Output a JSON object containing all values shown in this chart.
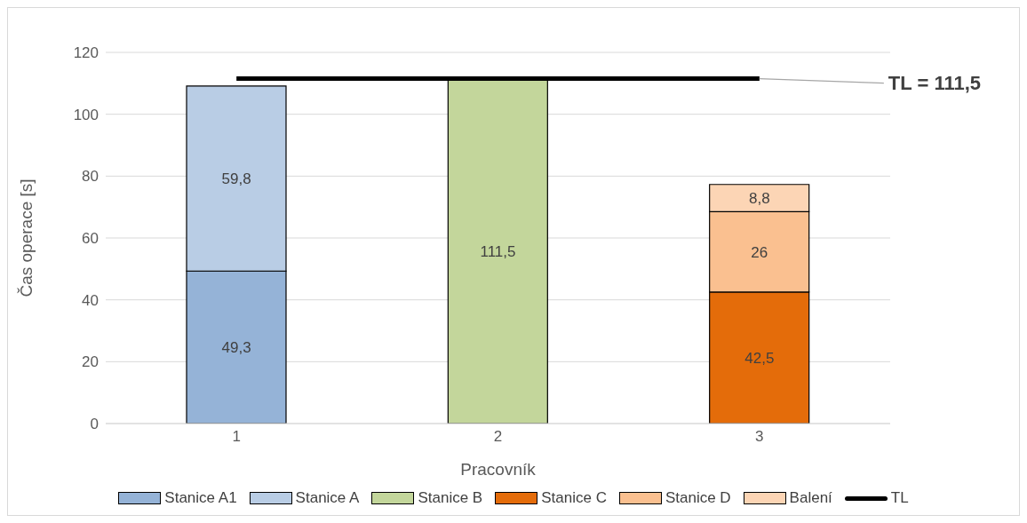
{
  "chart_data": {
    "type": "bar",
    "stacked": true,
    "xlabel": "Pracovník",
    "ylabel": "Čas operace [s]",
    "categories": [
      "1",
      "2",
      "3"
    ],
    "ylim": [
      0,
      120
    ],
    "yticks": [
      0,
      20,
      40,
      60,
      80,
      100,
      120
    ],
    "grid": "y",
    "legend": "bottom",
    "series": [
      {
        "name": "Stanice A1",
        "color": "#95b3d7",
        "values": [
          49.3,
          null,
          null
        ],
        "value_labels": [
          "49,3",
          null,
          null
        ]
      },
      {
        "name": "Stanice A",
        "color": "#b9cde5",
        "values": [
          59.8,
          null,
          null
        ],
        "value_labels": [
          "59,8",
          null,
          null
        ]
      },
      {
        "name": "Stanice B",
        "color": "#c3d69b",
        "values": [
          null,
          111.5,
          null
        ],
        "value_labels": [
          null,
          "111,5",
          null
        ]
      },
      {
        "name": "Stanice C",
        "color": "#e46c0a",
        "values": [
          null,
          null,
          42.5
        ],
        "value_labels": [
          null,
          null,
          "42,5"
        ]
      },
      {
        "name": "Stanice D",
        "color": "#fac090",
        "values": [
          null,
          null,
          26
        ],
        "value_labels": [
          null,
          null,
          "26"
        ]
      },
      {
        "name": "Balení",
        "color": "#fcd5b5",
        "values": [
          null,
          null,
          8.8
        ],
        "value_labels": [
          null,
          null,
          "8,8"
        ]
      },
      {
        "name": "TL",
        "type": "line",
        "color": "#000000",
        "values": [
          111.5,
          111.5,
          111.5
        ]
      }
    ],
    "annotations": [
      {
        "text": "TL = 111,5",
        "x": "3",
        "y": 111.5
      }
    ]
  }
}
